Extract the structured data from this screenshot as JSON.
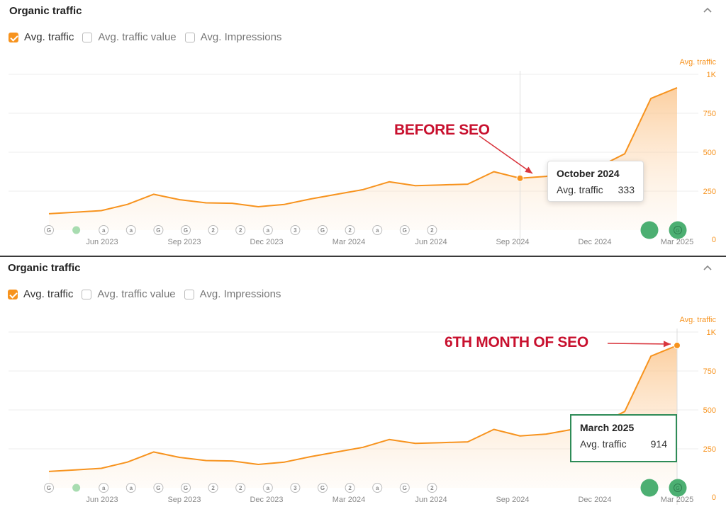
{
  "panels": [
    {
      "title": "Organic traffic",
      "legend": [
        {
          "label": "Avg. traffic",
          "checked": true
        },
        {
          "label": "Avg. traffic value",
          "checked": false
        },
        {
          "label": "Avg. Impressions",
          "checked": false
        }
      ],
      "tooltip": {
        "title": "October 2024",
        "label": "Avg. traffic",
        "value": "333"
      },
      "annotation": "BEFORE SEO"
    },
    {
      "title": "Organic traffic",
      "legend": [
        {
          "label": "Avg. traffic",
          "checked": true
        },
        {
          "label": "Avg. traffic value",
          "checked": false
        },
        {
          "label": "Avg. Impressions",
          "checked": false
        }
      ],
      "tooltip": {
        "title": "March 2025",
        "label": "Avg. traffic",
        "value": "914"
      },
      "annotation": "6TH MONTH OF SEO"
    }
  ],
  "chart_data": {
    "type": "area",
    "ylabel": "Avg. traffic",
    "ylim": [
      0,
      1000
    ],
    "yticks": [
      "0",
      "250",
      "500",
      "750",
      "1K"
    ],
    "x_labels": [
      "Jun 2023",
      "Sep 2023",
      "Dec 2023",
      "Mar 2024",
      "Jun 2024",
      "Sep 2024",
      "Dec 2024",
      "Mar 2025"
    ],
    "series": [
      {
        "name": "Avg. traffic",
        "values": [
          105,
          115,
          125,
          165,
          230,
          195,
          175,
          172,
          150,
          165,
          200,
          230,
          260,
          310,
          285,
          290,
          295,
          375,
          333,
          345,
          375,
          405,
          490,
          845,
          914
        ]
      }
    ],
    "markers": [
      "G",
      "dot",
      "a",
      "a",
      "G",
      "G",
      "2",
      "2",
      "a",
      "3",
      "G",
      "2",
      "a",
      "G",
      "2",
      "big",
      "bigG"
    ],
    "accent_color": "#f7931e",
    "annotation_color": "#c8102e"
  }
}
